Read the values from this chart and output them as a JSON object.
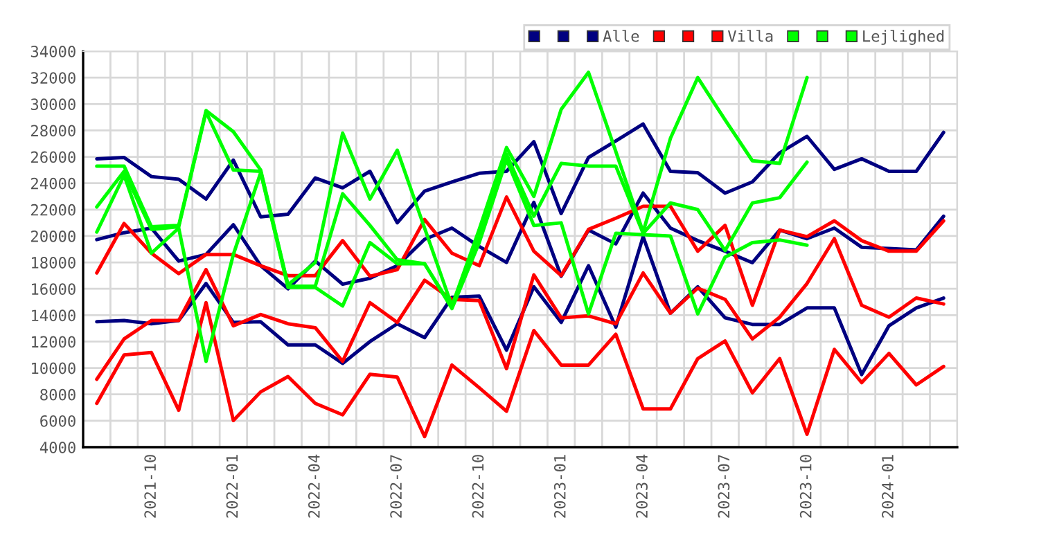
{
  "chart_data": {
    "type": "line",
    "categories": [
      null,
      null,
      "2021-10",
      null,
      null,
      "2022-01",
      null,
      null,
      "2022-04",
      null,
      null,
      "2022-07",
      null,
      null,
      "2022-10",
      null,
      null,
      "2023-01",
      null,
      null,
      "2023-04",
      null,
      null,
      "2023-07",
      null,
      null,
      "2023-10",
      null,
      null,
      "2024-01",
      null,
      null
    ],
    "series": [
      {
        "color": "#000080",
        "values": [
          13500,
          13600,
          13350,
          13600,
          16400,
          13450,
          13500,
          11750,
          11750,
          10350,
          12000,
          13350,
          12300,
          15350,
          15450,
          11350,
          16150,
          13450,
          17750,
          13100,
          19950,
          14150,
          16150,
          13800,
          13300,
          13300,
          14550,
          14550,
          9500,
          13200,
          14550,
          15300
        ]
      },
      {
        "color": "#000080",
        "values": [
          19730,
          20250,
          20600,
          18100,
          18600,
          20850,
          17750,
          16000,
          18100,
          16350,
          16800,
          17750,
          19750,
          20600,
          19200,
          18000,
          22550,
          16950,
          20450,
          19400,
          23250,
          20600,
          19650,
          18850,
          17980,
          20450,
          19800,
          20600,
          19150,
          19050,
          18950,
          21500
        ]
      },
      {
        "name": "Alle",
        "color": "#000080",
        "values": [
          25850,
          25950,
          24500,
          24300,
          22800,
          25750,
          21450,
          21650,
          24400,
          23650,
          24900,
          21000,
          23400,
          24100,
          24750,
          24900,
          27150,
          21700,
          25950,
          27200,
          28480,
          24900,
          24800,
          23250,
          24100,
          26300,
          27550,
          25050,
          25850,
          24900,
          24900,
          27850
        ]
      },
      {
        "color": "#ff0000",
        "values": [
          7320,
          10990,
          11170,
          6800,
          14950,
          6020,
          8190,
          9350,
          7320,
          6450,
          9520,
          9310,
          4800,
          10220,
          8500,
          6720,
          12840,
          10220,
          10220,
          12560,
          6900,
          6900,
          10710,
          12040,
          8120,
          10710,
          4980,
          11410,
          8890,
          11100,
          8720,
          10120
        ]
      },
      {
        "color": "#ff0000",
        "values": [
          9150,
          12200,
          13600,
          13600,
          17450,
          13200,
          14050,
          13350,
          13050,
          10500,
          14950,
          13450,
          16650,
          15200,
          15100,
          9950,
          17050,
          13800,
          13950,
          13350,
          17200,
          14150,
          16050,
          15200,
          12200,
          13850,
          16400,
          19800,
          14750,
          13850,
          15300,
          14850
        ]
      },
      {
        "name": "Villa",
        "color": "#ff0000",
        "values": [
          17200,
          20950,
          18700,
          17150,
          18600,
          18600,
          17750,
          17000,
          17000,
          19650,
          16950,
          17450,
          21250,
          18700,
          17750,
          22950,
          18850,
          17000,
          20500,
          21350,
          22250,
          22250,
          18850,
          20800,
          14750,
          20450,
          19950,
          21150,
          19650,
          18850,
          18850,
          21150
        ]
      },
      {
        "color": "#00ff00",
        "values": [
          20300,
          24600,
          18700,
          20600,
          10500,
          18600,
          24800,
          16100,
          16100,
          14700,
          19500,
          17900,
          17900,
          14500,
          19500,
          25800,
          20800,
          21000,
          14100,
          20200,
          20100,
          20000,
          14100,
          18400,
          19500,
          19700,
          19300,
          null,
          null,
          null,
          null,
          null
        ]
      },
      {
        "color": "#00ff00",
        "values": [
          22200,
          24900,
          20500,
          20700,
          29400,
          25000,
          24900,
          16200,
          16200,
          23200,
          20800,
          18200,
          17900,
          14600,
          20000,
          26200,
          21500,
          25500,
          25300,
          25300,
          20200,
          22500,
          22000,
          18900,
          22500,
          22900,
          25600,
          null,
          null,
          null,
          null,
          null
        ]
      },
      {
        "name": "Lejlighed",
        "color": "#00ff00",
        "values": [
          25300,
          25300,
          20700,
          20800,
          29500,
          27900,
          25000,
          16300,
          18000,
          27800,
          22800,
          26500,
          20600,
          14700,
          20500,
          26700,
          23000,
          29600,
          32400,
          26400,
          20300,
          27400,
          32000,
          28800,
          25700,
          25500,
          32000,
          null,
          null,
          null,
          null,
          null
        ]
      }
    ],
    "ylim": [
      4000,
      34000
    ],
    "yticks": [
      4000,
      6000,
      8000,
      10000,
      12000,
      14000,
      16000,
      18000,
      20000,
      22000,
      24000,
      26000,
      28000,
      30000,
      32000,
      34000
    ],
    "grid": true,
    "legend": "top right",
    "marker": "none",
    "line_style": "solid"
  }
}
